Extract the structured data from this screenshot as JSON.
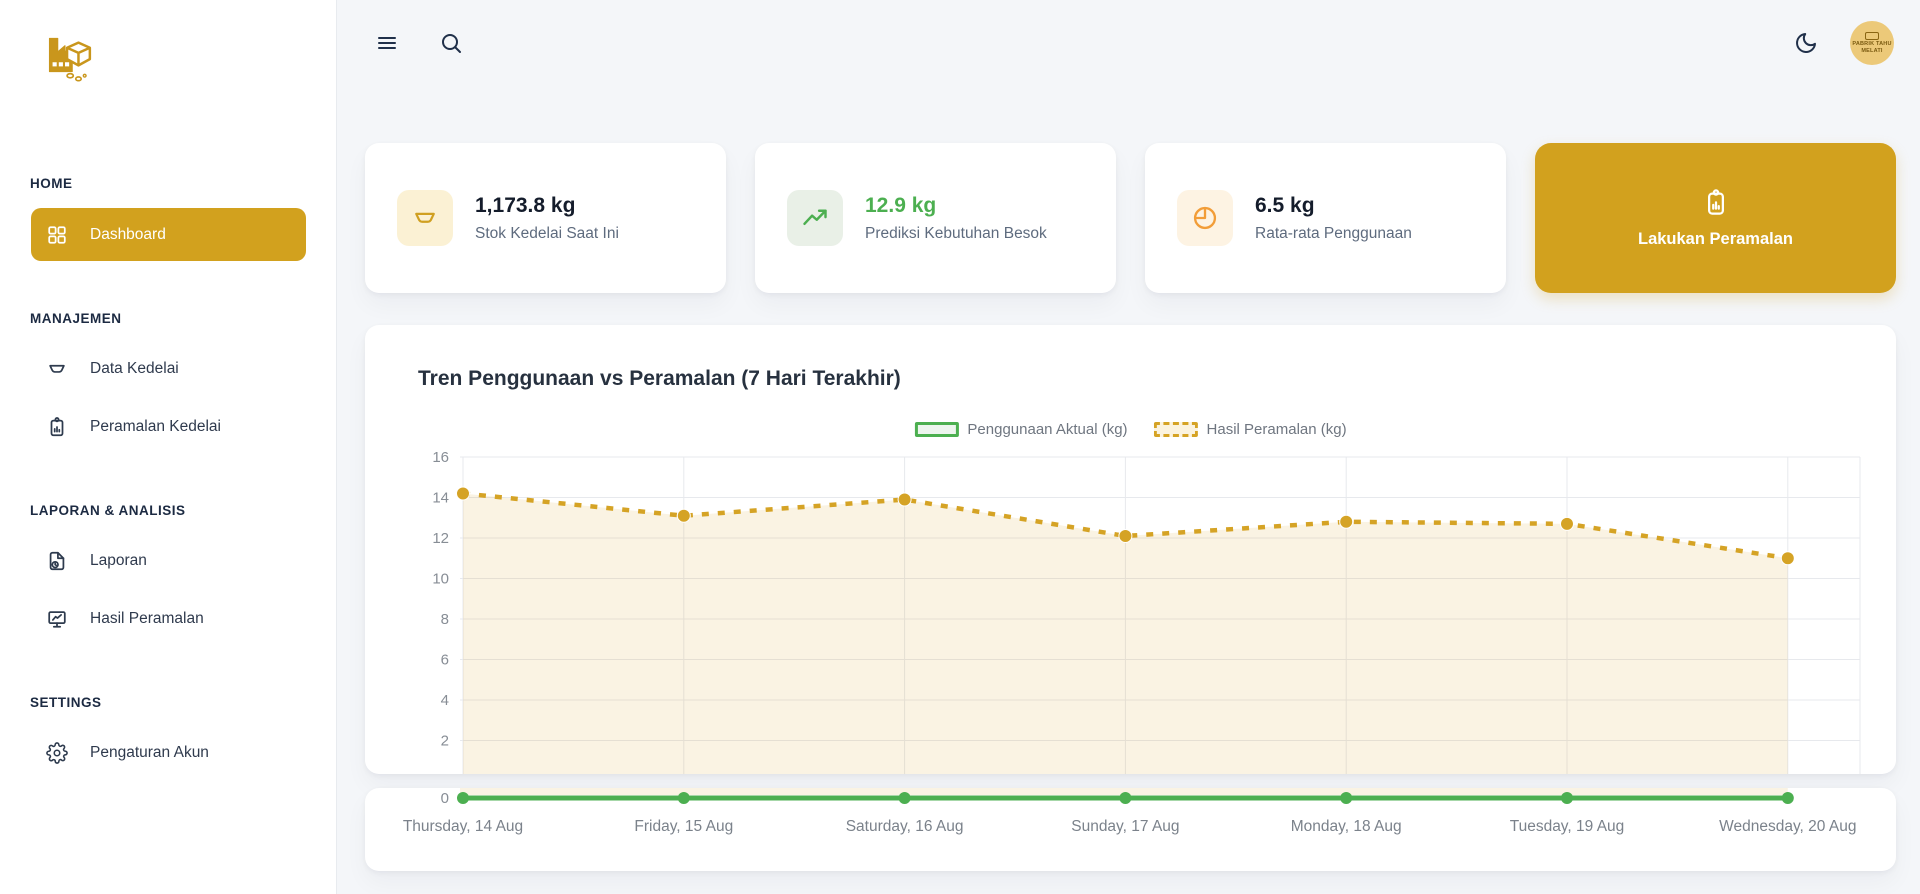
{
  "app": {
    "logo_name": "tofu-factory-logo",
    "avatar_line1": "PABRIK TAHU",
    "avatar_line2": "MELATI"
  },
  "colors": {
    "accent_gold": "#D2A11E",
    "green": "#4CAF50",
    "orange": "#F29D38",
    "page_bg": "#F4F6F9"
  },
  "sidebar": {
    "sections": [
      {
        "label": "HOME",
        "items": [
          {
            "label": "Dashboard",
            "icon": "dashboard-grid-icon",
            "active": true
          }
        ]
      },
      {
        "label": "MANAJEMEN",
        "items": [
          {
            "label": "Data Kedelai",
            "icon": "bowl-icon",
            "active": false
          },
          {
            "label": "Peramalan Kedelai",
            "icon": "clipboard-chart-icon",
            "active": false
          }
        ]
      },
      {
        "label": "LAPORAN & ANALISIS",
        "items": [
          {
            "label": "Laporan",
            "icon": "document-clock-icon",
            "active": false
          },
          {
            "label": "Hasil Peramalan",
            "icon": "monitor-chart-icon",
            "active": false
          }
        ]
      },
      {
        "label": "SETTINGS",
        "items": [
          {
            "label": "Pengaturan Akun",
            "icon": "gear-icon",
            "active": false
          }
        ]
      }
    ]
  },
  "header": {
    "icons": [
      "menu-icon",
      "search-icon",
      "dark-mode-moon-icon",
      "avatar"
    ]
  },
  "stats": [
    {
      "value": "1,173.8 kg",
      "label": "Stok Kedelai Saat Ini",
      "icon": "bowl-icon",
      "accent": "#D0A021",
      "icon_bg": "#FBF1D4",
      "value_color": "#141C2B"
    },
    {
      "value": "12.9 kg",
      "label": "Prediksi Kebutuhan Besok",
      "icon": "trending-up-icon",
      "accent": "#4CAF50",
      "icon_bg": "#E9F0E7",
      "value_color": "#4CAF50"
    },
    {
      "value": "6.5 kg",
      "label": "Rata-rata Penggunaan",
      "icon": "pie-chart-icon",
      "accent": "#F29D38",
      "icon_bg": "#FDF3E3",
      "value_color": "#141C2B"
    }
  ],
  "action": {
    "label": "Lakukan Peramalan",
    "icon": "clipboard-chart-icon",
    "bg": "#D2A11E"
  },
  "chart_data": {
    "type": "line",
    "title": "Tren Penggunaan vs Peramalan (7 Hari Terakhir)",
    "x": [
      "Thursday, 14 Aug",
      "Friday, 15 Aug",
      "Saturday, 16 Aug",
      "Sunday, 17 Aug",
      "Monday, 18 Aug",
      "Tuesday, 19 Aug",
      "Wednesday, 20 Aug"
    ],
    "series": [
      {
        "name": "Penggunaan Aktual (kg)",
        "color": "#4CAF50",
        "style": "solid",
        "values": [
          0,
          0,
          0,
          0,
          0,
          0,
          0
        ]
      },
      {
        "name": "Hasil Peramalan (kg)",
        "color": "#D5A325",
        "style": "dashed",
        "area": true,
        "values": [
          14.2,
          13.1,
          13.9,
          12.1,
          12.8,
          12.7,
          11.0
        ]
      }
    ],
    "ylim": [
      0,
      16
    ],
    "ytick_step": 2,
    "grid": true,
    "legend_position": "top"
  }
}
